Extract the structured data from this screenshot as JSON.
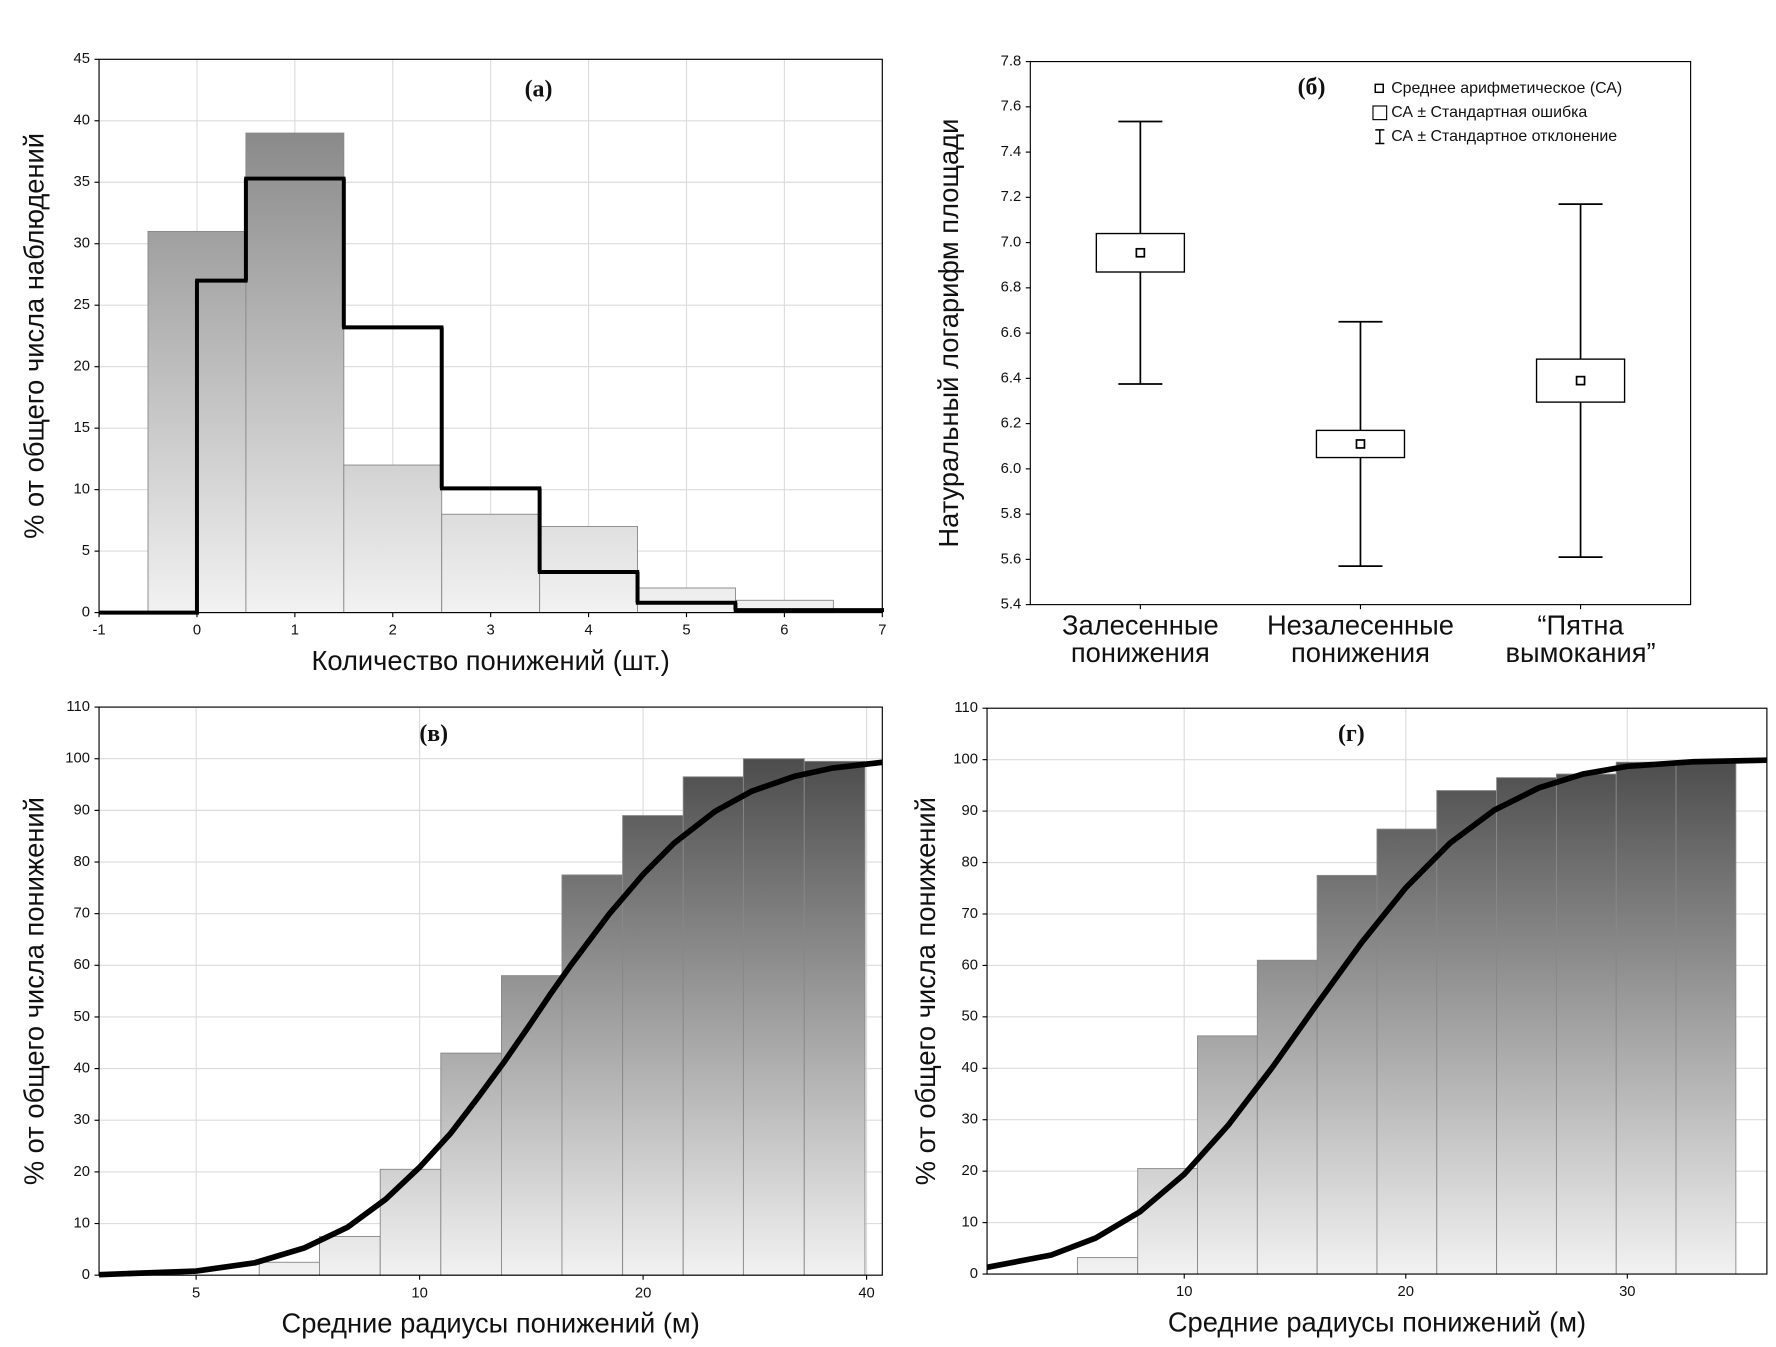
{
  "chart_data": [
    {
      "type": "histogram",
      "title": "(а)",
      "x_label": "Количество понижений (шт.)",
      "y_label": "% от общего числа наблюдений",
      "bins": [
        -0.5,
        0.5,
        1.5,
        2.5,
        3.5,
        4.5,
        5.5,
        6.5
      ],
      "values": [
        31,
        39,
        12,
        8,
        7,
        2,
        1
      ],
      "fit_edges": [
        0,
        0.5,
        1.5,
        2.5,
        3.5,
        4.5,
        5.5,
        7
      ],
      "fit_values": [
        27,
        35.3,
        23.2,
        10.1,
        3.3,
        0.8,
        0.2
      ],
      "xlim": [
        -1,
        7
      ],
      "xticks": [
        -1,
        0,
        1,
        2,
        3,
        4,
        5,
        6,
        7
      ],
      "ylim": [
        0,
        45
      ],
      "yticks": [
        0,
        5,
        10,
        15,
        20,
        25,
        30,
        35,
        40,
        45
      ],
      "grid": true,
      "bar_colors": [
        "#7a7a7a",
        "#f2f2f2"
      ],
      "line_color": "#000000"
    },
    {
      "type": "box",
      "title": "(б)",
      "y_label": "Натуральный логарифм площади",
      "categories": [
        [
          "Залесенные",
          "понижения"
        ],
        [
          "Незалесенные",
          "понижения"
        ],
        [
          "“Пятна",
          "вымокания”"
        ]
      ],
      "means": [
        6.955,
        6.11,
        6.39
      ],
      "se": [
        0.085,
        0.06,
        0.095
      ],
      "sd": [
        0.58,
        0.54,
        0.78
      ],
      "legend": [
        "Среднее арифметическое (СА)",
        "СА ± Стандартная ошибка",
        "СА ± Стандартное отклонение"
      ],
      "ylim": [
        5.4,
        7.8
      ],
      "yticks": [
        5.4,
        5.6,
        5.8,
        {
          "value": 6,
          "label": "6.0"
        },
        6.2,
        6.4,
        6.6,
        6.8,
        {
          "value": 7,
          "label": "7.0"
        },
        7.2,
        7.4,
        7.6,
        7.8
      ],
      "grid": false,
      "color": "#000000"
    },
    {
      "type": "histogram",
      "title": "(в)",
      "x_label": "Средние радиусы понижений (м)",
      "y_label": "% от общего числа понижений",
      "bins": [
        6.08,
        7.33,
        8.85,
        10.68,
        12.89,
        15.55,
        18.77,
        22.65,
        27.3,
        32.97,
        39.8
      ],
      "values": [
        2.5,
        7.5,
        20.5,
        43,
        58,
        77.5,
        89,
        96.5,
        100,
        99.5
      ],
      "curve": {
        "x": [
          3.7,
          5,
          6,
          7,
          8,
          9,
          10,
          11,
          12,
          13,
          14,
          15,
          16,
          18,
          20,
          22,
          25,
          28,
          32,
          36,
          42
        ],
        "values": [
          0.1,
          0.8,
          2.4,
          5.3,
          9.3,
          14.7,
          20.9,
          27.4,
          34.5,
          41.3,
          48.0,
          54.4,
          60.1,
          69.9,
          77.6,
          83.6,
          89.8,
          93.7,
          96.6,
          98.2,
          99.3
        ]
      },
      "xscale": "log",
      "xlim": [
        3.7,
        42
      ],
      "xticks": [
        5,
        10,
        20,
        40
      ],
      "ylim": [
        0,
        110
      ],
      "yticks": [
        0,
        10,
        20,
        30,
        40,
        50,
        60,
        70,
        80,
        90,
        100,
        110
      ],
      "grid": true,
      "bar_colors": [
        "#3c3c3c",
        "#f2f2f2"
      ],
      "line_color": "#000000"
    },
    {
      "type": "histogram",
      "title": "(г)",
      "x_label": "Средние радиусы понижений (м)",
      "y_label": "% от общего числа понижений",
      "bins": [
        5.18,
        7.9,
        10.6,
        13.3,
        16.0,
        18.7,
        21.4,
        24.1,
        26.8,
        29.5,
        32.2,
        34.9
      ],
      "values": [
        3.2,
        20.5,
        46.3,
        61,
        77.5,
        86.5,
        94,
        96.5,
        97.2,
        99.5,
        99.5
      ],
      "curve": {
        "x": [
          1.1,
          4,
          6,
          8,
          10,
          12,
          14,
          16,
          18,
          20,
          22,
          24,
          26,
          28,
          30,
          33,
          36.3
        ],
        "values": [
          1.3,
          3.7,
          7.0,
          12.1,
          19.4,
          29.0,
          40.3,
          52.5,
          64.4,
          75.1,
          83.8,
          90.2,
          94.5,
          97.2,
          98.7,
          99.6,
          99.9
        ]
      },
      "xlim": [
        1.1,
        36.3
      ],
      "xticks": [
        10,
        20,
        30
      ],
      "ylim": [
        0,
        110
      ],
      "yticks": [
        0,
        10,
        20,
        30,
        40,
        50,
        60,
        70,
        80,
        90,
        100,
        110
      ],
      "grid": true,
      "bar_colors": [
        "#3c3c3c",
        "#f2f2f2"
      ],
      "line_color": "#000000"
    }
  ]
}
